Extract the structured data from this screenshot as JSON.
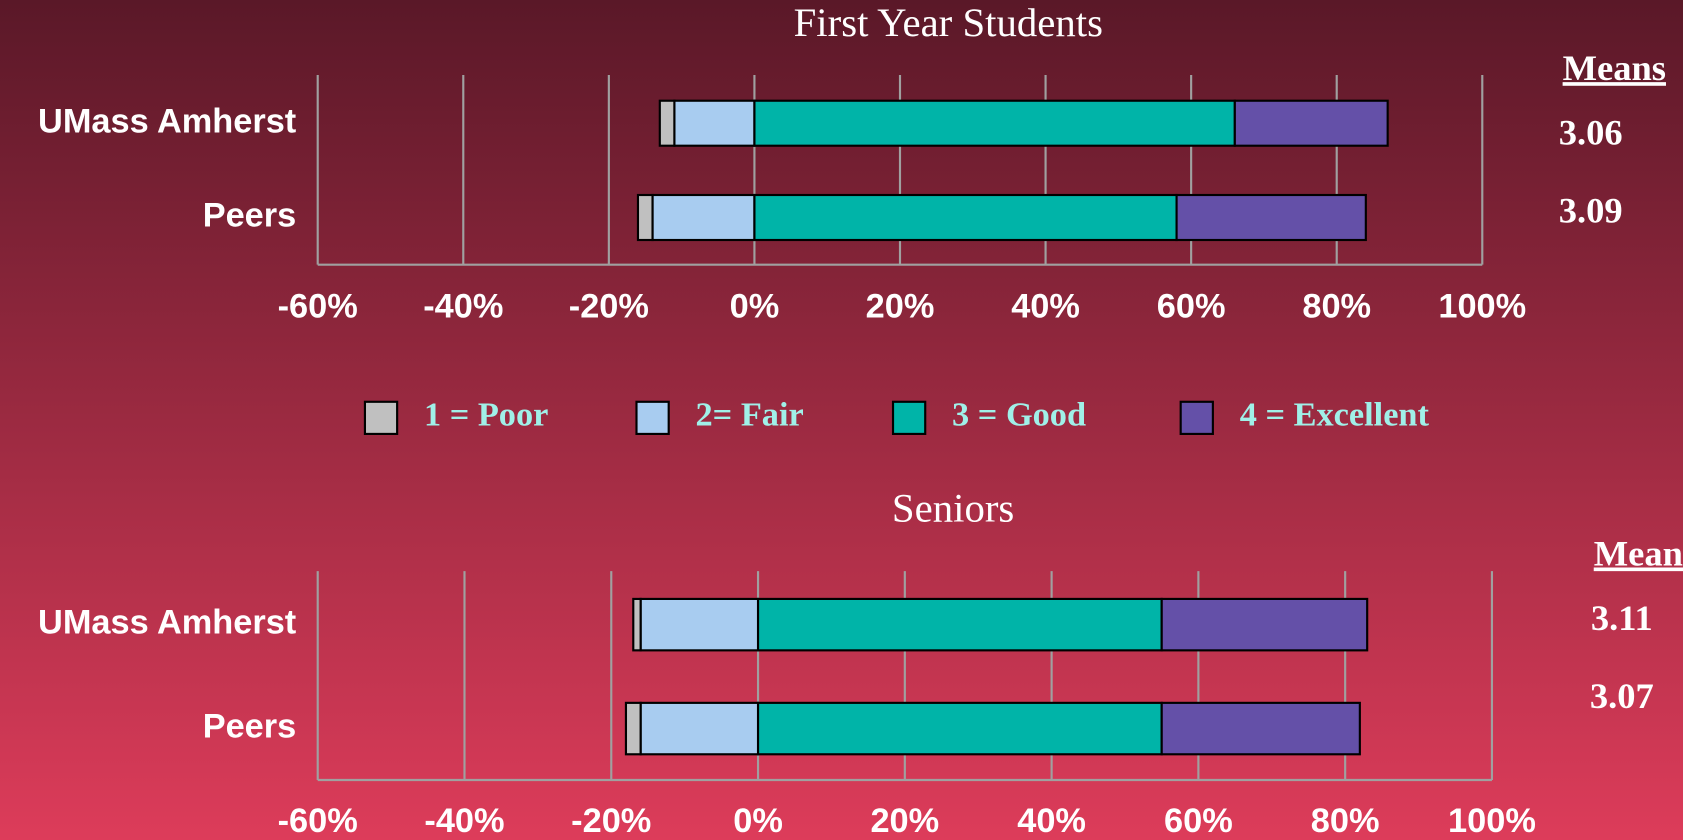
{
  "legend": {
    "position": "center",
    "color": "#a0f0e8"
  },
  "chart_data": [
    {
      "type": "bar",
      "orientation": "horizontal",
      "stacked": true,
      "title": "First Year Students",
      "categories": [
        "UMass Amherst",
        "Peers"
      ],
      "series": [
        {
          "name": "1 = Poor",
          "color": "#c0c0c0",
          "values": [
            -2,
            -2
          ]
        },
        {
          "name": "2= Fair",
          "color": "#a8ccf0",
          "values": [
            -11,
            -14
          ]
        },
        {
          "name": "3 = Good",
          "color": "#00b4a8",
          "values": [
            66,
            58
          ]
        },
        {
          "name": "4 = Excellent",
          "color": "#6450a8",
          "values": [
            21,
            26
          ]
        }
      ],
      "xlim": [
        -60,
        100
      ],
      "xticks": [
        {
          "value": -60,
          "label": "-60%"
        },
        {
          "value": -40,
          "label": "-40%"
        },
        {
          "value": -20,
          "label": "-20%"
        },
        {
          "value": 0,
          "label": "0%"
        },
        {
          "value": 20,
          "label": "20%"
        },
        {
          "value": 40,
          "label": "40%"
        },
        {
          "value": 60,
          "label": "60%"
        },
        {
          "value": 80,
          "label": "80%"
        },
        {
          "value": 100,
          "label": "100%"
        }
      ],
      "grid": true,
      "means": {
        "title": "Means",
        "values": [
          3.06,
          3.09
        ]
      }
    },
    {
      "type": "bar",
      "orientation": "horizontal",
      "stacked": true,
      "title": "Seniors",
      "categories": [
        "UMass Amherst",
        "Peers"
      ],
      "series": [
        {
          "color": "#c0c0c0",
          "values": [
            -1,
            -2
          ]
        },
        {
          "color": "#a8ccf0",
          "values": [
            -16,
            -16
          ]
        },
        {
          "color": "#00b4a8",
          "values": [
            55,
            55
          ]
        },
        {
          "color": "#6450a8",
          "values": [
            28,
            27
          ]
        }
      ],
      "xlim": [
        -60,
        100
      ],
      "xticks": [
        {
          "value": -60,
          "label": "-60%"
        },
        {
          "value": -40,
          "label": "-40%"
        },
        {
          "value": -20,
          "label": "-20%"
        },
        {
          "value": 0,
          "label": "0%"
        },
        {
          "value": 20,
          "label": "20%"
        },
        {
          "value": 40,
          "label": "40%"
        },
        {
          "value": 60,
          "label": "60%"
        },
        {
          "value": 80,
          "label": "80%"
        },
        {
          "value": 100,
          "label": "100%"
        }
      ],
      "grid": true,
      "means": {
        "title": "Means",
        "values": [
          3.11,
          3.07
        ]
      }
    }
  ]
}
